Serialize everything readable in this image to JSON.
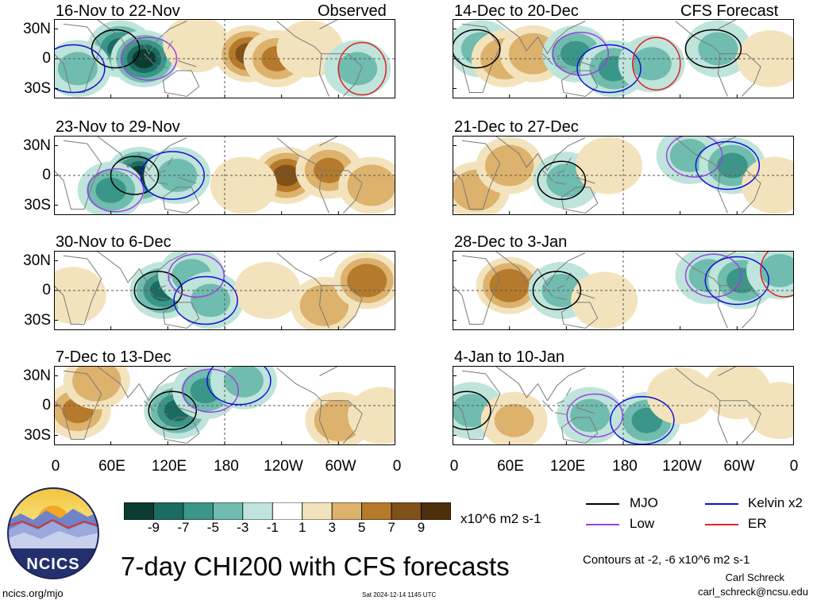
{
  "panels_left": [
    {
      "title": "16-Nov to 22-Nov",
      "tag": "Observed"
    },
    {
      "title": "23-Nov to 29-Nov",
      "tag": ""
    },
    {
      "title": "30-Nov to 6-Dec",
      "tag": ""
    },
    {
      "title": "7-Dec to 13-Dec",
      "tag": ""
    }
  ],
  "panels_right": [
    {
      "title": "14-Dec to 20-Dec",
      "tag": "CFS Forecast"
    },
    {
      "title": "21-Dec to 27-Dec",
      "tag": ""
    },
    {
      "title": "28-Dec to 3-Jan",
      "tag": ""
    },
    {
      "title": "4-Jan to 10-Jan",
      "tag": ""
    }
  ],
  "lat_labels": [
    "30N",
    "0",
    "30S"
  ],
  "lon_labels": [
    "0",
    "60E",
    "120E",
    "180",
    "120W",
    "60W",
    "0"
  ],
  "colorbar": {
    "labels": [
      "-9",
      "-7",
      "-5",
      "-3",
      "-1",
      "1",
      "3",
      "5",
      "7",
      "9"
    ],
    "colors": [
      "#0b3b33",
      "#1a6b61",
      "#3a9688",
      "#70bcae",
      "#bfe4dc",
      "#ffffff",
      "#f3e3bd",
      "#dcb26d",
      "#b57a2c",
      "#80511a",
      "#4d2f0c"
    ],
    "units": "x10^6 m2 s-1"
  },
  "legend": {
    "mjo": "MJO",
    "kelvin": "Kelvin x2",
    "low": "Low",
    "er": "ER",
    "colors": {
      "mjo": "#000000",
      "kelvin": "#1010d0",
      "low": "#9a40e0",
      "er": "#e02020"
    }
  },
  "logo_text": "NCICS",
  "main_title": "7-day CHI200 with CFS forecasts",
  "contours_note": "Contours at -2, -6 x10^6 m2 s-1",
  "author": "Carl Schreck",
  "email": "carl_schreck@ncsu.edu",
  "url": "ncics.org/mjo",
  "timestamp": "Sat 2024-12-14 1145 UTC",
  "chart_data": {
    "type": "heatmap",
    "title": "7-day CHI200 with CFS forecasts",
    "x_axis": {
      "label": "",
      "ticks": [
        "0",
        "60E",
        "120E",
        "180",
        "120W",
        "60W",
        "0"
      ],
      "range_deg": [
        0,
        360
      ]
    },
    "y_axis": {
      "label": "",
      "ticks": [
        "30N",
        "0",
        "30S"
      ],
      "range_deg": [
        -40,
        40
      ]
    },
    "color_levels": [
      -9,
      -7,
      -5,
      -3,
      -1,
      1,
      3,
      5,
      7,
      9
    ],
    "contour_levels": [
      -2,
      -6
    ],
    "units": "x10^6 m2 s-1",
    "series": [
      {
        "name": "MJO",
        "color": "#000000"
      },
      {
        "name": "Kelvin x2",
        "color": "#1010d0"
      },
      {
        "name": "Low",
        "color": "#9a40e0"
      },
      {
        "name": "ER",
        "color": "#e02020"
      }
    ],
    "panels": [
      {
        "period": "16-Nov to 22-Nov",
        "source": "Observed",
        "blobs": [
          [
            70,
            10,
            -7
          ],
          [
            95,
            0,
            -9
          ],
          [
            25,
            -10,
            -3
          ],
          [
            150,
            15,
            3
          ],
          [
            205,
            5,
            8
          ],
          [
            235,
            0,
            6
          ],
          [
            270,
            10,
            3
          ],
          [
            320,
            -10,
            -3
          ]
        ]
      },
      {
        "period": "23-Nov to 29-Nov",
        "source": "",
        "blobs": [
          [
            90,
            0,
            -9
          ],
          [
            60,
            -15,
            -5
          ],
          [
            130,
            0,
            -3
          ],
          [
            245,
            0,
            8
          ],
          [
            290,
            5,
            6
          ],
          [
            335,
            -10,
            5
          ],
          [
            200,
            -10,
            3
          ]
        ]
      },
      {
        "period": "30-Nov to 6-Dec",
        "source": "",
        "blobs": [
          [
            20,
            -5,
            3
          ],
          [
            115,
            0,
            -8
          ],
          [
            145,
            15,
            -3
          ],
          [
            165,
            -10,
            -3
          ],
          [
            225,
            0,
            3
          ],
          [
            285,
            -15,
            5
          ],
          [
            330,
            10,
            7
          ]
        ]
      },
      {
        "period": "7-Dec to 13-Dec",
        "source": "",
        "blobs": [
          [
            25,
            -5,
            6
          ],
          [
            45,
            25,
            5
          ],
          [
            130,
            -5,
            -7
          ],
          [
            160,
            15,
            -5
          ],
          [
            200,
            25,
            -3
          ],
          [
            300,
            -15,
            5
          ],
          [
            345,
            -10,
            3
          ]
        ]
      },
      {
        "period": "14-Dec to 20-Dec",
        "source": "CFS Forecast",
        "blobs": [
          [
            30,
            10,
            -3
          ],
          [
            55,
            0,
            5
          ],
          [
            85,
            5,
            5
          ],
          [
            130,
            5,
            -5
          ],
          [
            170,
            -10,
            -5
          ],
          [
            210,
            -5,
            -3
          ],
          [
            280,
            10,
            -3
          ],
          [
            335,
            0,
            3
          ]
        ]
      },
      {
        "period": "21-Dec to 27-Dec",
        "source": "",
        "blobs": [
          [
            25,
            -15,
            5
          ],
          [
            60,
            10,
            5
          ],
          [
            120,
            -5,
            -3
          ],
          [
            165,
            10,
            3
          ],
          [
            250,
            20,
            -3
          ],
          [
            295,
            10,
            -5
          ],
          [
            340,
            -10,
            3
          ]
        ]
      },
      {
        "period": "28-Dec to 3-Jan",
        "source": "",
        "blobs": [
          [
            60,
            5,
            7
          ],
          [
            115,
            0,
            -3
          ],
          [
            160,
            -10,
            3
          ],
          [
            270,
            15,
            -3
          ],
          [
            305,
            10,
            -5
          ],
          [
            345,
            20,
            -3
          ]
        ]
      },
      {
        "period": "4-Jan to 10-Jan",
        "source": "",
        "blobs": [
          [
            20,
            -5,
            -3
          ],
          [
            65,
            -15,
            4
          ],
          [
            145,
            -10,
            -3
          ],
          [
            205,
            -15,
            -5
          ],
          [
            240,
            10,
            3
          ],
          [
            300,
            15,
            3
          ],
          [
            345,
            -5,
            3
          ]
        ]
      }
    ]
  }
}
